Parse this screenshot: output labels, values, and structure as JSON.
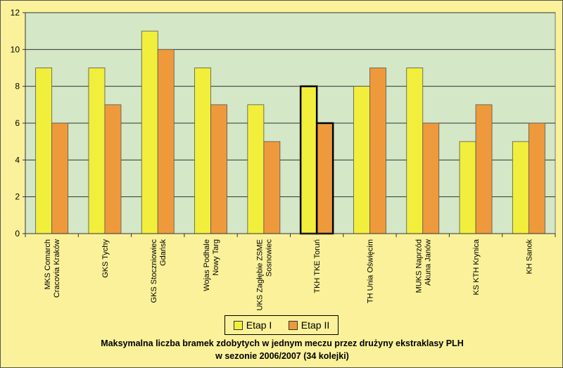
{
  "chart_data": {
    "type": "bar",
    "title": [
      "Maksymalna liczba bramek zdobytych w jednym meczu przez drużyny ekstraklasy PLH",
      "w sezonie 2006/2007 (34 kolejki)"
    ],
    "categories": [
      [
        "MKS Comarch",
        "Cracovia Kraków"
      ],
      [
        "GKS Tychy"
      ],
      [
        "GKS Stoczniowiec",
        "Gdańsk"
      ],
      [
        "Wojas Podhale",
        "Nowy Targ"
      ],
      [
        "UKS Zagłębie ZSME",
        "Sosnowiec"
      ],
      [
        "TKH TKE Toruń"
      ],
      [
        "TH Unia Oświęcim"
      ],
      [
        "MUKS Naprzód",
        "Akuna Janów"
      ],
      [
        "KS KTH Krynica"
      ],
      [
        "KH Sanok"
      ]
    ],
    "series": [
      {
        "name": "Etap I",
        "color": "#f2ee3c",
        "values": [
          9,
          9,
          11,
          9,
          7,
          8,
          8,
          9,
          5,
          5
        ]
      },
      {
        "name": "Etap II",
        "color": "#ee9a3c",
        "values": [
          6,
          7,
          10,
          7,
          5,
          6,
          9,
          6,
          7,
          6
        ]
      }
    ],
    "highlighted_category": "TKH TKE Toruń",
    "ylim": [
      0,
      12
    ],
    "yticks": [
      0,
      2,
      4,
      6,
      8,
      10,
      12
    ],
    "grid": true,
    "legend": "bottom-center",
    "plot_background": "#d4e7c6"
  }
}
